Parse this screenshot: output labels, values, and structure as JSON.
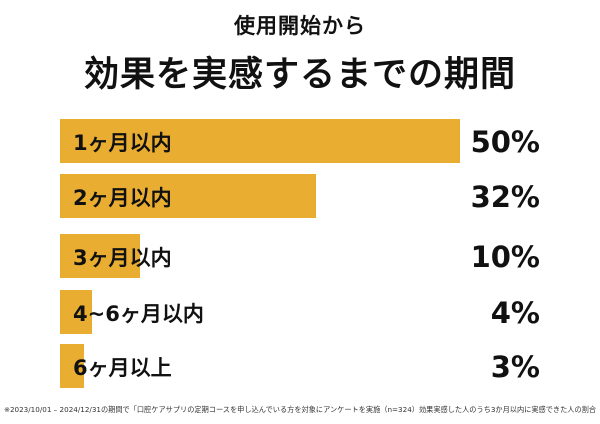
{
  "title_line1": "使用開始から",
  "title_line2": "効果を実感するまでの期間",
  "colors": {
    "bar": "#E9AE31",
    "text": "#111111",
    "background": "#ffffff"
  },
  "chart_data": {
    "type": "bar",
    "orientation": "horizontal",
    "categories": [
      "1ヶ月以内",
      "2ヶ月以内",
      "3ヶ月以内",
      "4~6ヶ月以内",
      "6ヶ月以上"
    ],
    "values": [
      50,
      32,
      10,
      4,
      3
    ],
    "value_labels": [
      "50%",
      "32%",
      "10%",
      "4%",
      "3%"
    ],
    "xlim": [
      0,
      50
    ],
    "grid": false,
    "legend": "none"
  },
  "footnote": "※2023/10/01 – 2024/12/31の期間で「口腔ケアサプリの定期コースを申し込んでいる方を対象にアンケートを実施（n=324）効果実感した人のうち3か月以内に実感できた人の割合"
}
